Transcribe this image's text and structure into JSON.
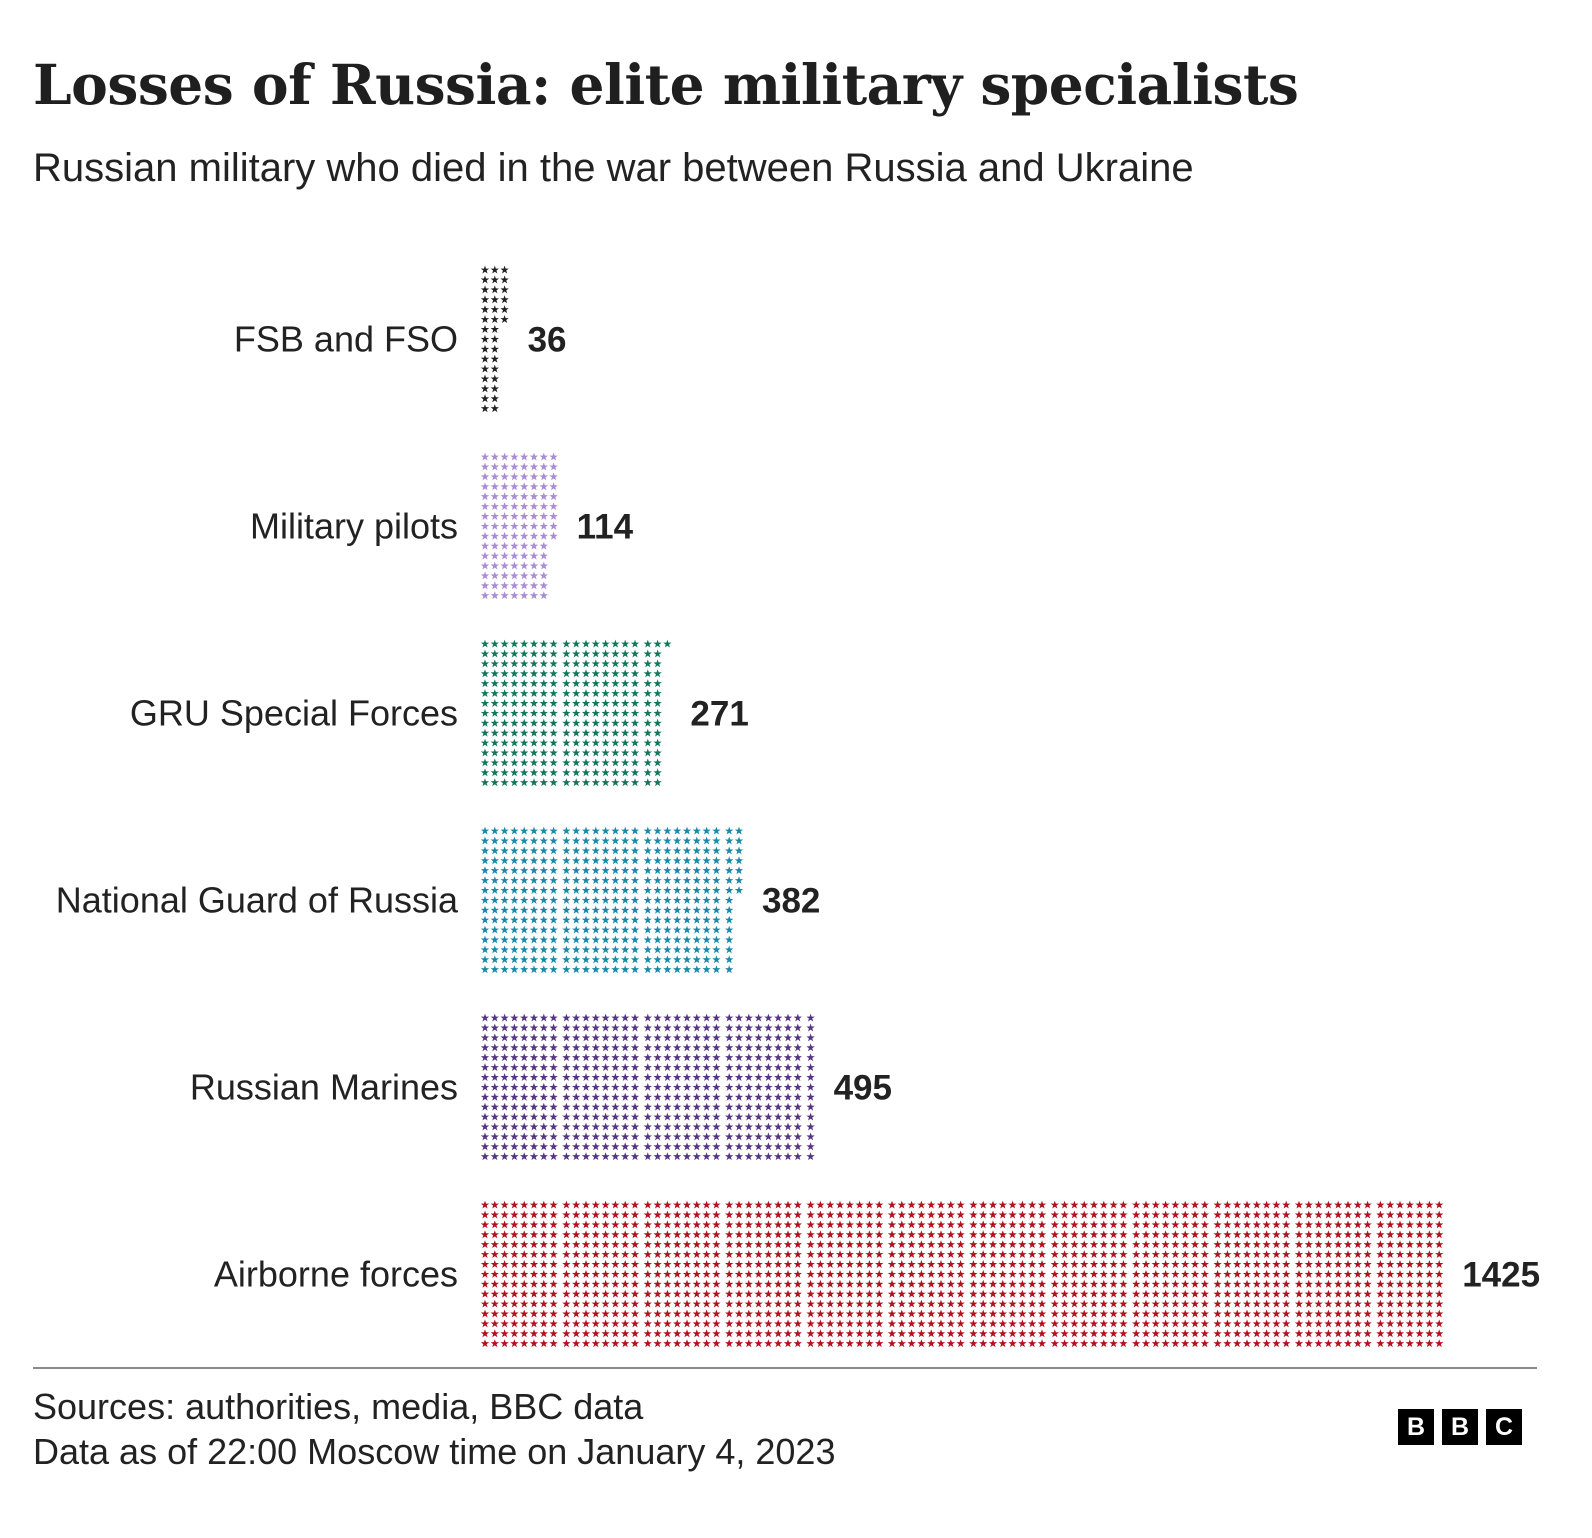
{
  "title": "Losses of Russia: elite military specialists",
  "subtitle": "Russian military who died in the war between Russia and Ukraine",
  "chart_data": {
    "type": "bar",
    "orientation": "horizontal",
    "style": "star pictogram (one star = one person)",
    "categories": [
      "FSB and FSO",
      "Military pilots",
      "GRU Special Forces",
      "National Guard of Russia",
      "Russian Marines",
      "Airborne forces"
    ],
    "values": [
      36,
      114,
      271,
      382,
      495,
      1425
    ],
    "value_labels": [
      "36",
      "114",
      "271",
      "382",
      "495",
      "1425"
    ],
    "colors": [
      "#222222",
      "#a98bd6",
      "#12775a",
      "#1a8aa8",
      "#553583",
      "#b1121d"
    ],
    "legend": "none",
    "grid": false
  },
  "footer": {
    "sources": "Sources: authorities, media, BBC data",
    "date_note": "Data as of 22:00 Moscow time on January 4, 2023"
  },
  "logo": [
    "B",
    "B",
    "C"
  ]
}
